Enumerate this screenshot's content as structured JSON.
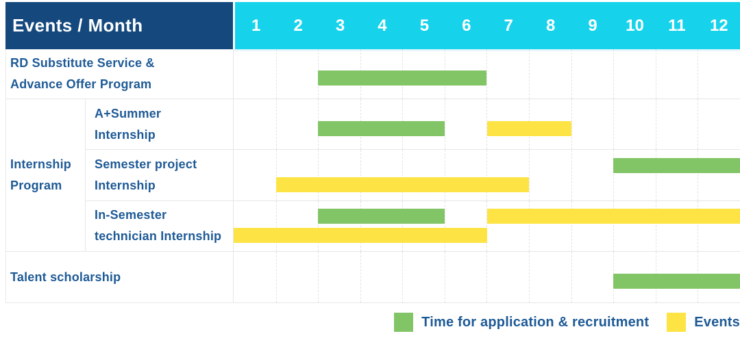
{
  "header": {
    "title": "Events / Month",
    "months": [
      "1",
      "2",
      "3",
      "4",
      "5",
      "6",
      "7",
      "8",
      "9",
      "10",
      "11",
      "12"
    ]
  },
  "colors": {
    "navy": "#15497E",
    "cyan": "#16D3EB",
    "application_green": "#82C566",
    "event_yellow": "#FDE444",
    "text_blue": "#1E5A96",
    "grid_line": "#E6E6E6"
  },
  "chart_data": {
    "type": "bar",
    "variant": "gantt",
    "title": "Events / Month",
    "x_categories": [
      "1",
      "2",
      "3",
      "4",
      "5",
      "6",
      "7",
      "8",
      "9",
      "10",
      "11",
      "12"
    ],
    "x_range": [
      1,
      12
    ],
    "grid": true,
    "legend_position": "bottom-right",
    "rows": [
      {
        "group": null,
        "label": "RD Substitute Service &\nAdvance Offer Program",
        "lanes": [
          [
            {
              "kind": "application",
              "start_month": 3,
              "end_month": 6
            }
          ]
        ]
      },
      {
        "group": "Internship\nProgram",
        "label": "A+Summer\nInternship",
        "lanes": [
          [
            {
              "kind": "application",
              "start_month": 3,
              "end_month": 5
            },
            {
              "kind": "event",
              "start_month": 7,
              "end_month": 8
            }
          ]
        ]
      },
      {
        "group": "Internship\nProgram",
        "label": "Semester project\nInternship",
        "lanes": [
          [
            {
              "kind": "application",
              "start_month": 10,
              "end_month": 12
            }
          ],
          [
            {
              "kind": "event",
              "start_month": 2,
              "end_month": 7
            }
          ]
        ]
      },
      {
        "group": "Internship\nProgram",
        "label": "In-Semester\ntechnician Internship",
        "lanes": [
          [
            {
              "kind": "application",
              "start_month": 3,
              "end_month": 5
            },
            {
              "kind": "event",
              "start_month": 7,
              "end_month": 12
            }
          ],
          [
            {
              "kind": "event",
              "start_month": 1,
              "end_month": 6
            }
          ]
        ]
      },
      {
        "group": null,
        "label": "Talent scholarship",
        "lanes": [
          [
            {
              "kind": "application",
              "start_month": 10,
              "end_month": 12
            }
          ]
        ]
      }
    ],
    "legend": [
      {
        "kind": "application",
        "label": "Time for application & recruitment"
      },
      {
        "kind": "event",
        "label": "Events"
      }
    ]
  }
}
